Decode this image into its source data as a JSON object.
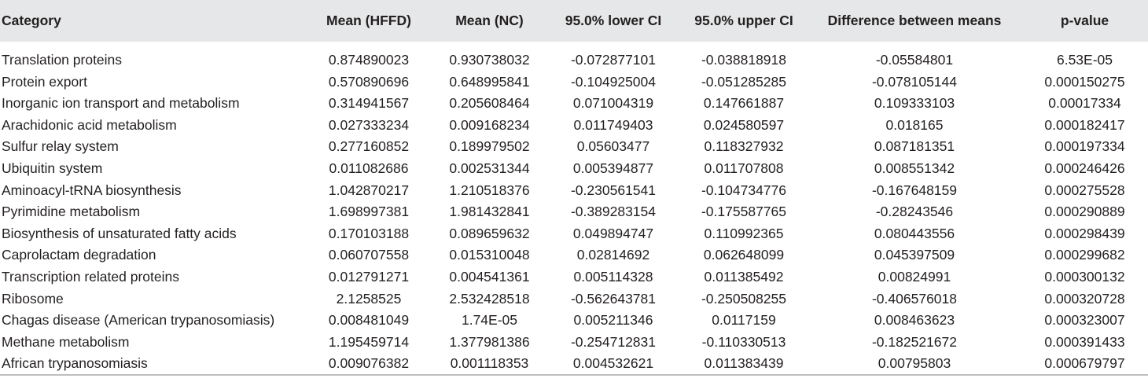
{
  "table": {
    "headers": [
      "Category",
      "Mean (HFFD)",
      "Mean (NC)",
      "95.0% lower CI",
      "95.0% upper CI",
      "Difference between means",
      "p-value"
    ],
    "rows": [
      [
        "Translation proteins",
        "0.874890023",
        "0.930738032",
        "-0.072877101",
        "-0.038818918",
        "-0.05584801",
        "6.53E-05"
      ],
      [
        "Protein export",
        "0.570890696",
        "0.648995841",
        "-0.104925004",
        "-0.051285285",
        "-0.078105144",
        "0.000150275"
      ],
      [
        "Inorganic ion transport and metabolism",
        "0.314941567",
        "0.205608464",
        "0.071004319",
        "0.147661887",
        "0.109333103",
        "0.00017334"
      ],
      [
        "Arachidonic acid metabolism",
        "0.027333234",
        "0.009168234",
        "0.011749403",
        "0.024580597",
        "0.018165",
        "0.000182417"
      ],
      [
        "Sulfur relay system",
        "0.277160852",
        "0.189979502",
        "0.05603477",
        "0.118327932",
        "0.087181351",
        "0.000197334"
      ],
      [
        "Ubiquitin system",
        "0.011082686",
        "0.002531344",
        "0.005394877",
        "0.011707808",
        "0.008551342",
        "0.000246426"
      ],
      [
        "Aminoacyl-tRNA biosynthesis",
        "1.042870217",
        "1.210518376",
        "-0.230561541",
        "-0.104734776",
        "-0.167648159",
        "0.000275528"
      ],
      [
        "Pyrimidine metabolism",
        "1.698997381",
        "1.981432841",
        "-0.389283154",
        "-0.175587765",
        "-0.28243546",
        "0.000290889"
      ],
      [
        "Biosynthesis of unsaturated fatty acids",
        "0.170103188",
        "0.089659632",
        "0.049894747",
        "0.110992365",
        "0.080443556",
        "0.000298439"
      ],
      [
        "Caprolactam degradation",
        "0.060707558",
        "0.015310048",
        "0.02814692",
        "0.062648099",
        "0.045397509",
        "0.000299682"
      ],
      [
        "Transcription related proteins",
        "0.012791271",
        "0.004541361",
        "0.005114328",
        "0.011385492",
        "0.00824991",
        "0.000300132"
      ],
      [
        "Ribosome",
        "2.1258525",
        "2.532428518",
        "-0.562643781",
        "-0.250508255",
        "-0.406576018",
        "0.000320728"
      ],
      [
        "Chagas disease (American trypanosomiasis)",
        "0.008481049",
        "1.74E-05",
        "0.005211346",
        "0.0117159",
        "0.008463623",
        "0.000323007"
      ],
      [
        "Methane metabolism",
        "1.195459714",
        "1.377981386",
        "-0.254712831",
        "-0.110330513",
        "-0.182521672",
        "0.000391433"
      ],
      [
        "African trypanosomiasis",
        "0.009076382",
        "0.001118353",
        "0.004532621",
        "0.011383439",
        "0.00795803",
        "0.000679797"
      ]
    ]
  }
}
